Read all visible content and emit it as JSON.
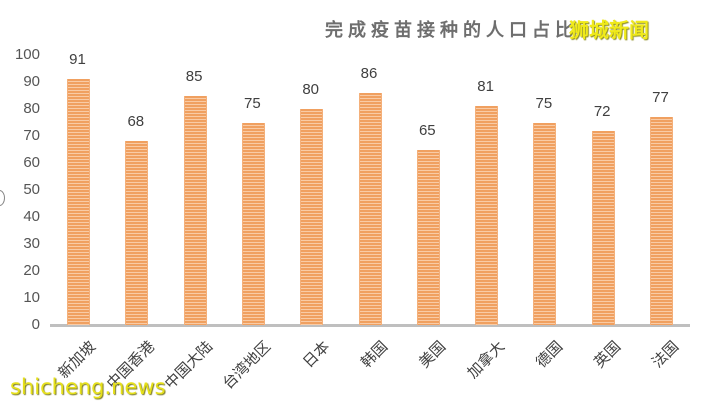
{
  "title": "完成疫苗接种的人口占比",
  "watermarks": {
    "top": "狮城新闻",
    "bottom": "shicheng.news"
  },
  "colors": {
    "bar": "#F0A060",
    "bar_stripe": "#F9CBA5",
    "axis": "#BFBFBF",
    "title": "#6E6E6E",
    "watermark": "#F0EA1A"
  },
  "y_ticks": [
    "100",
    "90",
    "80",
    "70",
    "60",
    "50",
    "40",
    "30",
    "20",
    "10",
    "0"
  ],
  "chart_data": {
    "type": "bar",
    "title": "完成疫苗接种的人口占比",
    "xlabel": "",
    "ylabel": "",
    "ylim": [
      0,
      100
    ],
    "yticks": [
      0,
      10,
      20,
      30,
      40,
      50,
      60,
      70,
      80,
      90,
      100
    ],
    "grid": false,
    "legend": null,
    "categories": [
      "新加坡",
      "中国香港",
      "中国大陆",
      "台湾地区",
      "日本",
      "韩国",
      "美国",
      "加拿大",
      "德国",
      "英国",
      "法国"
    ],
    "values": [
      91,
      68,
      85,
      75,
      80,
      86,
      65,
      81,
      75,
      72,
      77
    ],
    "data_labels": [
      "91",
      "68",
      "85",
      "75",
      "80",
      "86",
      "65",
      "81",
      "75",
      "72",
      "77"
    ]
  }
}
